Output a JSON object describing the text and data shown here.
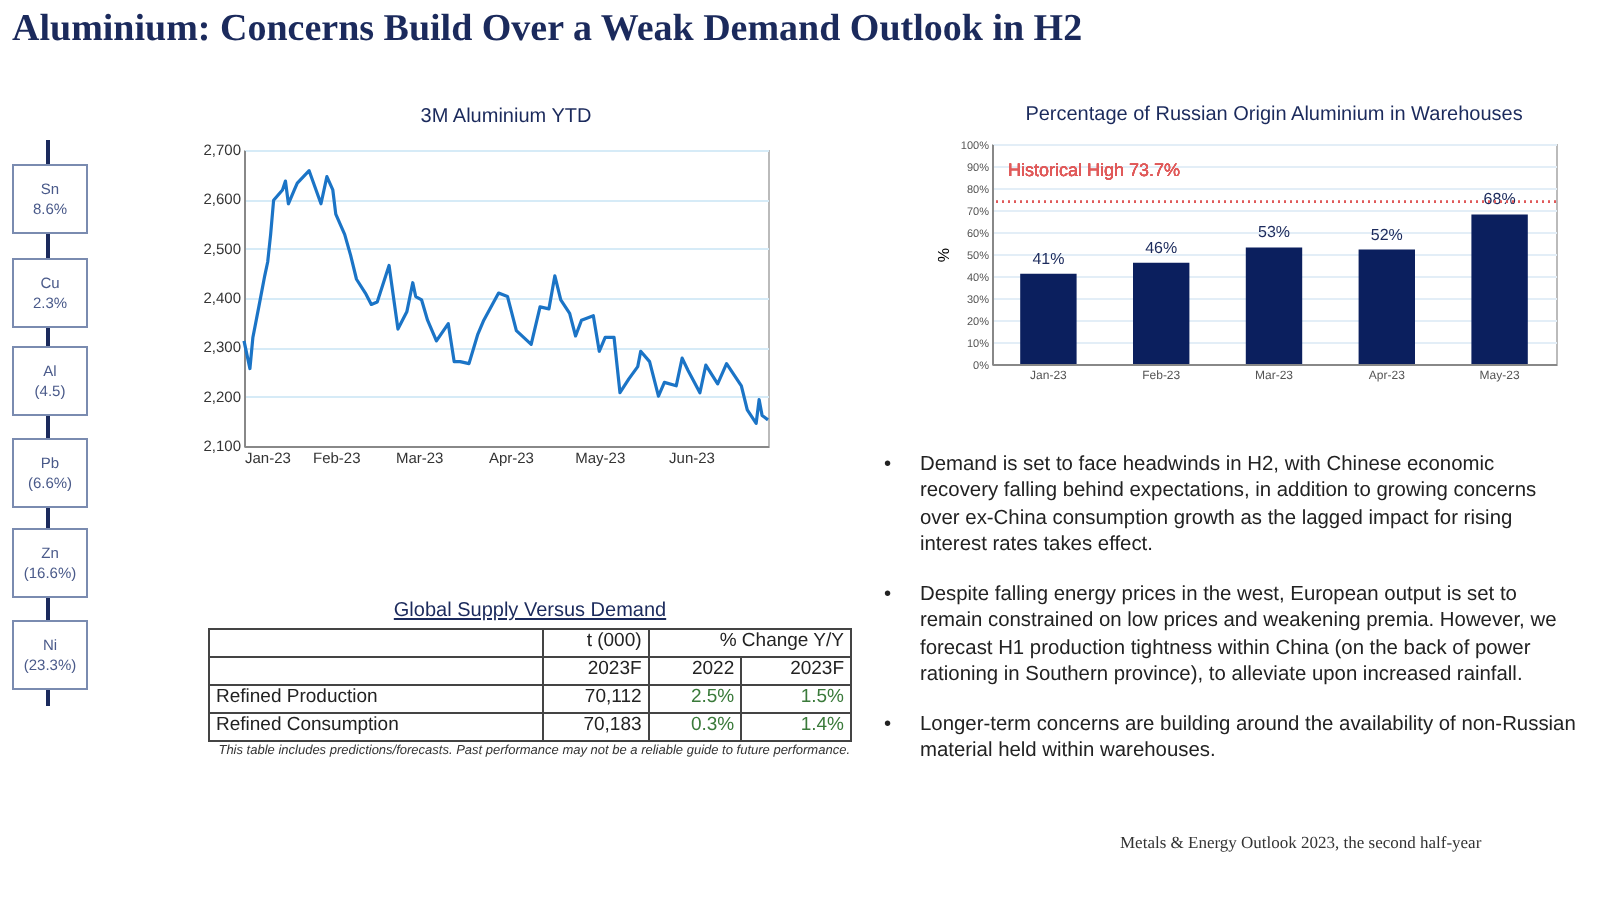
{
  "chart_data": [
    {
      "type": "other",
      "title": "Aluminium: Concerns Build Over a Weak Demand Outlook in H2",
      "annotations": [
        "Sn",
        "8.6%",
        "Cu",
        "2.3%",
        "Al",
        "(4.5)",
        "Pb",
        "(6.6%)",
        "Zn",
        "(16.6%)",
        "Ni",
        "(23.3%)",
        "Global Supply Versus Demand",
        "t (000)",
        "% Change Y/Y",
        "2023F",
        "2022",
        "2023F",
        "Refined Production",
        "70,112",
        "2.5%",
        "1.5%",
        "Refined Consumption",
        "70,183",
        "0.3%",
        "1.4%",
        "This table includes predictions/forecasts. Past performance may not be a reliable guide to future performance.",
        "•",
        "Demand is set to face headwinds in H2, with Chinese economic recovery falling behind expectations, in addition to growing concerns over ex-China consumption growth as the lagged impact for rising interest rates takes effect.",
        "•",
        "Despite falling energy prices in the west, European output is set to remain constrained on low prices and weakening premia. However, we forecast H1 production tightness within China (on the back of power rationing in Southern province), to alleviate upon increased rainfall.",
        "•",
        "Longer-term concerns are building around the availability of non-Russian material held within warehouses.",
        "Metals & Energy Outlook 2023, the second half-year"
      ]
    },
    {
      "type": "line",
      "title": "3M Aluminium YTD",
      "color": "#1b74c6",
      "grid": "y",
      "x": [
        "2023-01-01",
        "2023-01-03",
        "2023-01-04",
        "2023-01-06",
        "2023-01-08",
        "2023-01-09",
        "2023-01-10",
        "2023-01-11",
        "2023-01-14",
        "2023-01-15",
        "2023-01-16",
        "2023-01-18",
        "2023-01-19",
        "2023-01-23",
        "2023-01-27",
        "2023-01-29",
        "2023-01-31",
        "2023-02-01",
        "2023-02-04",
        "2023-02-06",
        "2023-02-08",
        "2023-02-11",
        "2023-02-13",
        "2023-02-15",
        "2023-02-19",
        "2023-02-22",
        "2023-02-25",
        "2023-02-27",
        "2023-02-28",
        "2023-03-02",
        "2023-03-04",
        "2023-03-07",
        "2023-03-11",
        "2023-03-13",
        "2023-03-15",
        "2023-03-18",
        "2023-03-21",
        "2023-03-23",
        "2023-03-28",
        "2023-03-31",
        "2023-04-03",
        "2023-04-08",
        "2023-04-11",
        "2023-04-14",
        "2023-04-16",
        "2023-04-18",
        "2023-04-21",
        "2023-04-23",
        "2023-04-25",
        "2023-04-29",
        "2023-05-01",
        "2023-05-03",
        "2023-05-06",
        "2023-05-08",
        "2023-05-11",
        "2023-05-14",
        "2023-05-15",
        "2023-05-18",
        "2023-05-21",
        "2023-05-23",
        "2023-05-27",
        "2023-05-29",
        "2023-05-31",
        "2023-06-04",
        "2023-06-06",
        "2023-06-10",
        "2023-06-13",
        "2023-06-18",
        "2023-06-20",
        "2023-06-23",
        "2023-06-24",
        "2023-06-25",
        "2023-06-27"
      ],
      "values": [
        2313,
        2257,
        2320,
        2382,
        2445,
        2473,
        2529,
        2598,
        2619,
        2637,
        2591,
        2619,
        2633,
        2658,
        2591,
        2646,
        2619,
        2570,
        2529,
        2487,
        2438,
        2410,
        2387,
        2392,
        2466,
        2337,
        2372,
        2431,
        2403,
        2396,
        2355,
        2313,
        2348,
        2271,
        2271,
        2267,
        2327,
        2355,
        2410,
        2403,
        2334,
        2306,
        2382,
        2378,
        2445,
        2396,
        2369,
        2323,
        2355,
        2364,
        2292,
        2320,
        2320,
        2208,
        2236,
        2261,
        2292,
        2271,
        2201,
        2229,
        2222,
        2278,
        2253,
        2208,
        2264,
        2226,
        2267,
        2222,
        2173,
        2146,
        2194,
        2162,
        2153
      ],
      "xlim": [
        "2023-01-01",
        "2023-06-27"
      ],
      "xticks": [
        {
          "value": "2023-01-01",
          "label": "Jan-23"
        },
        {
          "value": "2023-02-01",
          "label": "Feb-23"
        },
        {
          "value": "2023-03-01",
          "label": "Mar-23"
        },
        {
          "value": "2023-04-01",
          "label": "Apr-23"
        },
        {
          "value": "2023-05-01",
          "label": "May-23"
        },
        {
          "value": "2023-06-01",
          "label": "Jun-23"
        }
      ],
      "ylim": [
        2100,
        2700
      ],
      "yticks": [
        {
          "value": 2100,
          "label": "2,100"
        },
        {
          "value": 2200,
          "label": "2,200"
        },
        {
          "value": 2300,
          "label": "2,300"
        },
        {
          "value": 2400,
          "label": "2,400"
        },
        {
          "value": 2500,
          "label": "2,500"
        },
        {
          "value": 2600,
          "label": "2,600"
        },
        {
          "value": 2700,
          "label": "2,700"
        }
      ]
    },
    {
      "type": "bar",
      "title": "Percentage of Russian Origin Aluminium in Warehouses",
      "ylabel": "%",
      "color": "#0b1f5e",
      "grid": "y",
      "categories": [
        "Jan-23",
        "Feb-23",
        "Mar-23",
        "Apr-23",
        "May-23"
      ],
      "values": [
        41,
        46,
        53,
        52,
        68
      ],
      "value_labels": [
        "41%",
        "46%",
        "53%",
        "52%",
        "68%"
      ],
      "ylim": [
        0,
        100
      ],
      "yticks": [
        {
          "value": 0,
          "label": "0%"
        },
        {
          "value": 10,
          "label": "10%"
        },
        {
          "value": 20,
          "label": "20%"
        },
        {
          "value": 30,
          "label": "30%"
        },
        {
          "value": 40,
          "label": "40%"
        },
        {
          "value": 50,
          "label": "50%"
        },
        {
          "value": 60,
          "label": "60%"
        },
        {
          "value": 70,
          "label": "70%"
        },
        {
          "value": 80,
          "label": "80%"
        },
        {
          "value": 90,
          "label": "90%"
        },
        {
          "value": 100,
          "label": "100%"
        }
      ],
      "ref_lines": [
        {
          "axis": "y",
          "value": 73.7,
          "label": "Historical High 73.7%",
          "color": "#e05a5a",
          "line_style": "dotted"
        }
      ]
    }
  ]
}
